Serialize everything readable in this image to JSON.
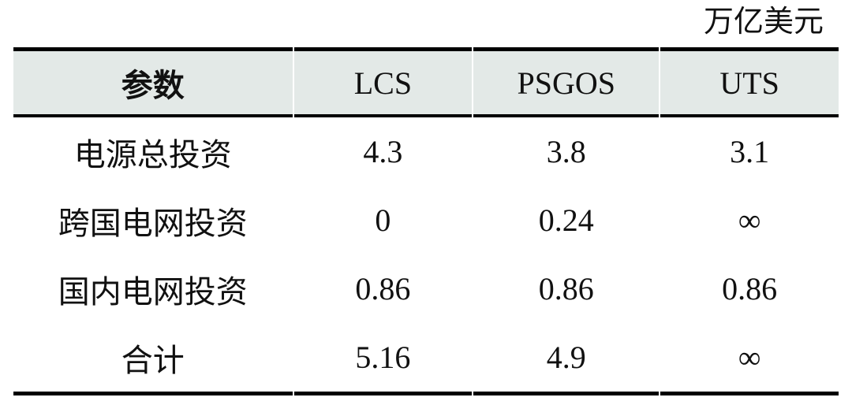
{
  "unit_label": "万亿美元",
  "table": {
    "headers": [
      "参数",
      "LCS",
      "PSGOS",
      "UTS"
    ],
    "rows": [
      {
        "label": "电源总投资",
        "values": [
          "4.3",
          "3.8",
          "3.1"
        ]
      },
      {
        "label": "跨国电网投资",
        "values": [
          "0",
          "0.24",
          "∞"
        ]
      },
      {
        "label": "国内电网投资",
        "values": [
          "0.86",
          "0.86",
          "0.86"
        ]
      },
      {
        "label": "合计",
        "values": [
          "5.16",
          "4.9",
          "∞"
        ]
      }
    ],
    "header_bg": "#e3e9e7",
    "border_color": "#000000",
    "text_color": "#111111"
  },
  "chart_data": {
    "type": "table",
    "unit": "万亿美元",
    "columns": [
      "参数",
      "LCS",
      "PSGOS",
      "UTS"
    ],
    "rows": [
      [
        "电源总投资",
        4.3,
        3.8,
        3.1
      ],
      [
        "跨国电网投资",
        0,
        0.24,
        "∞"
      ],
      [
        "国内电网投资",
        0.86,
        0.86,
        0.86
      ],
      [
        "合计",
        5.16,
        4.9,
        "∞"
      ]
    ],
    "notes": "Investment comparison table; ∞ denotes infinite/unbounded cost; header row shaded"
  }
}
